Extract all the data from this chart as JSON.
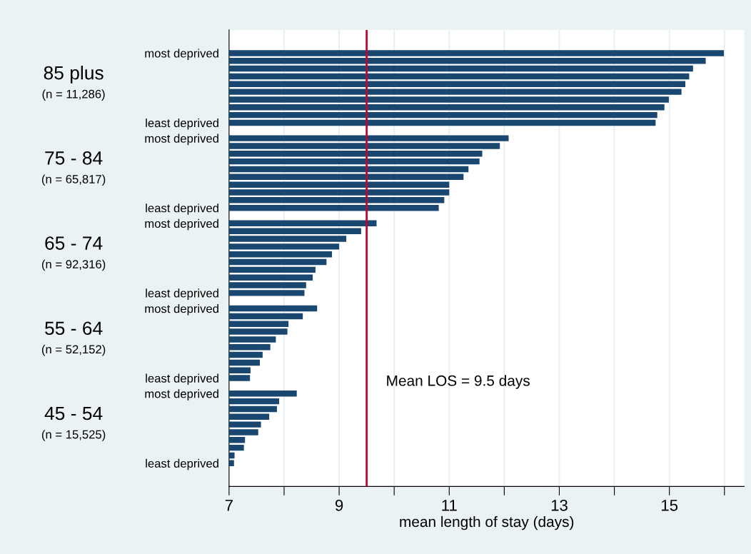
{
  "chart_data": {
    "type": "bar",
    "orientation": "horizontal",
    "categories": [
      "most deprived",
      null,
      null,
      null,
      null,
      null,
      null,
      null,
      null,
      "least deprived",
      null,
      "most deprived",
      null,
      null,
      null,
      null,
      null,
      null,
      null,
      null,
      "least deprived",
      null,
      "most deprived",
      null,
      null,
      null,
      null,
      null,
      null,
      null,
      null,
      "least deprived",
      null,
      "most deprived",
      null,
      null,
      null,
      null,
      null,
      null,
      null,
      null,
      "least deprived",
      null,
      "most deprived",
      null,
      null,
      null,
      null,
      null,
      null,
      null,
      null,
      "least deprived"
    ],
    "values": [
      15.99,
      15.66,
      15.43,
      15.36,
      15.29,
      15.22,
      14.99,
      14.91,
      14.78,
      14.75,
      null,
      12.08,
      11.92,
      11.6,
      11.55,
      11.35,
      11.26,
      11.0,
      11.0,
      10.91,
      10.81,
      null,
      9.68,
      9.4,
      9.13,
      9.0,
      8.87,
      8.77,
      8.57,
      8.52,
      8.4,
      8.37,
      null,
      8.6,
      8.34,
      8.08,
      8.06,
      7.85,
      7.75,
      7.61,
      7.56,
      7.39,
      7.38,
      null,
      8.23,
      7.91,
      7.87,
      7.73,
      7.58,
      7.53,
      7.29,
      7.27,
      7.1,
      7.09
    ],
    "color": "#1a476f",
    "xlabel": "mean length of stay (days)",
    "xlim": [
      7,
      16.36
    ],
    "xticks": [
      7,
      {
        "value": 8,
        "label": null
      },
      9,
      {
        "value": 10,
        "label": null
      },
      11,
      {
        "value": 12,
        "label": null
      },
      13,
      {
        "value": 14,
        "label": null
      },
      15,
      {
        "value": 16,
        "label": null
      }
    ],
    "grid": "x",
    "ref_lines": [
      {
        "axis": "x",
        "value": 9.5,
        "label": "Mean LOS = 9.5 days",
        "color": "#c10534"
      }
    ],
    "annotations": [
      "85 plus",
      "(n = 11,286)",
      "75 - 84",
      "(n = 65,817)",
      "65 - 74",
      "(n = 92,316)",
      "55 - 64",
      "(n = 52,152)",
      "45 - 54",
      "(n = 15,525)"
    ]
  }
}
